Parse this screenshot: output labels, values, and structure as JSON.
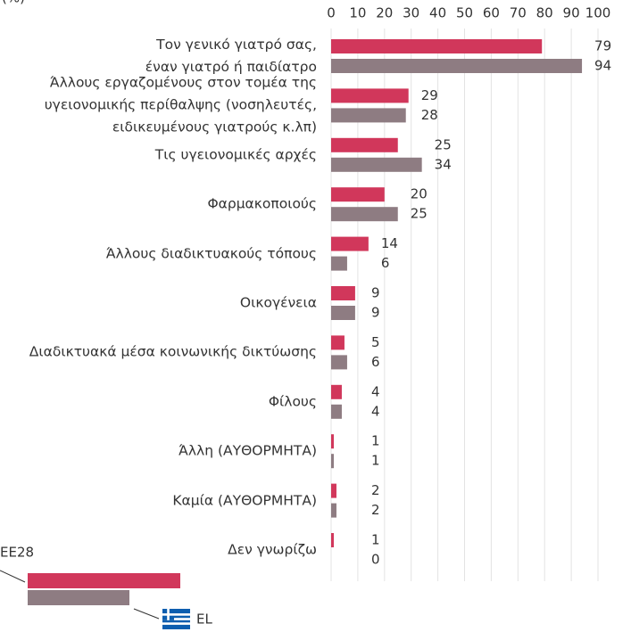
{
  "chart_data": {
    "type": "bar",
    "orientation": "horizontal",
    "title": "(%)",
    "categories": [
      "Τον γενικό γιατρό σας,\nέναν γιατρό ή παιδίατρο",
      "Άλλους εργαζομένους στον τομέα της\nυγειονομικής περίθαλψης (νοσηλευτές,\nειδικευμένους γιατρούς κ.λπ)",
      "Τις υγειονομικές αρχές",
      "Φαρμακοποιούς",
      "Άλλους διαδικτυακούς τόπους",
      "Οικογένεια",
      "Διαδικτυακά μέσα κοινωνικής δικτύωσης",
      "Φίλους",
      "Άλλη (ΑΥΘΟΡΜΗΤΑ)",
      "Καμία (ΑΥΘΟΡΜΗΤΑ)",
      "Δεν γνωρίζω"
    ],
    "series": [
      {
        "name": "EE28",
        "color": "#d1375b",
        "values": [
          79,
          29,
          25,
          20,
          14,
          9,
          5,
          4,
          1,
          2,
          1
        ]
      },
      {
        "name": "EL",
        "color": "#8e7c82",
        "values": [
          94,
          28,
          34,
          25,
          6,
          9,
          6,
          4,
          1,
          2,
          0
        ]
      }
    ],
    "xlim": [
      0,
      100
    ],
    "xticks": [
      0,
      10,
      20,
      30,
      40,
      50,
      60,
      70,
      80,
      90,
      100
    ],
    "grid": true
  }
}
